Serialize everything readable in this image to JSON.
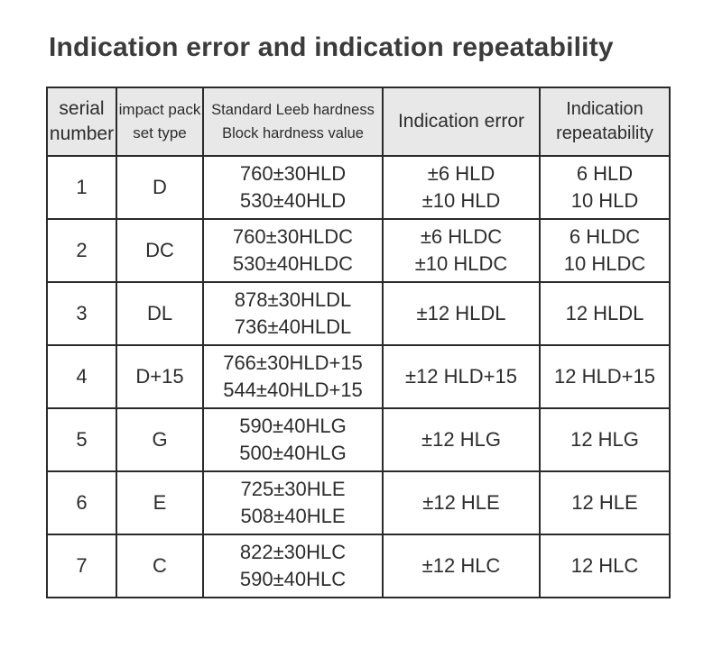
{
  "page": {
    "title": "Indication error and indication repeatability"
  },
  "colors": {
    "background": "#ffffff",
    "title_text": "#3b3b3b",
    "table_border": "#2a2a2a",
    "header_background": "#e8e8e8",
    "cell_background": "#ffffff",
    "cell_text": "#2d2d2d"
  },
  "table": {
    "headers": [
      {
        "lines": [
          "serial",
          "number"
        ]
      },
      {
        "lines": [
          "impact pack",
          "set type"
        ]
      },
      {
        "lines": [
          "Standard Leeb hardness",
          "Block hardness value"
        ]
      },
      {
        "lines": [
          "Indication error"
        ]
      },
      {
        "lines": [
          "Indication",
          "repeatability"
        ]
      }
    ],
    "rows": [
      {
        "cells": [
          [
            "1"
          ],
          [
            "D"
          ],
          [
            "760±30HLD",
            "530±40HLD"
          ],
          [
            "±6 HLD",
            "±10 HLD"
          ],
          [
            "6 HLD",
            "10 HLD"
          ]
        ]
      },
      {
        "cells": [
          [
            "2"
          ],
          [
            "DC"
          ],
          [
            "760±30HLDC",
            "530±40HLDC"
          ],
          [
            "±6 HLDC",
            "±10 HLDC"
          ],
          [
            "6 HLDC",
            "10 HLDC"
          ]
        ]
      },
      {
        "cells": [
          [
            "3"
          ],
          [
            "DL"
          ],
          [
            "878±30HLDL",
            "736±40HLDL"
          ],
          [
            "±12 HLDL"
          ],
          [
            "12 HLDL"
          ]
        ]
      },
      {
        "cells": [
          [
            "4"
          ],
          [
            "D+15"
          ],
          [
            "766±30HLD+15",
            "544±40HLD+15"
          ],
          [
            "±12 HLD+15"
          ],
          [
            "12 HLD+15"
          ]
        ]
      },
      {
        "cells": [
          [
            "5"
          ],
          [
            "G"
          ],
          [
            "590±40HLG",
            "500±40HLG"
          ],
          [
            "±12 HLG"
          ],
          [
            "12 HLG"
          ]
        ]
      },
      {
        "cells": [
          [
            "6"
          ],
          [
            "E"
          ],
          [
            "725±30HLE",
            "508±40HLE"
          ],
          [
            "±12 HLE"
          ],
          [
            "12 HLE"
          ]
        ]
      },
      {
        "cells": [
          [
            "7"
          ],
          [
            "C"
          ],
          [
            "822±30HLC",
            "590±40HLC"
          ],
          [
            "±12 HLC"
          ],
          [
            "12 HLC"
          ]
        ]
      }
    ]
  }
}
